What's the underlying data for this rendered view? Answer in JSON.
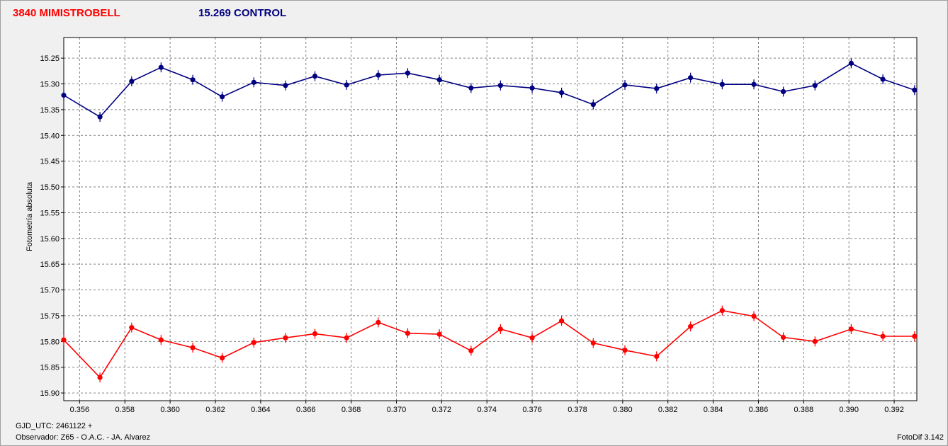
{
  "header": {
    "variable_label": "3840 MIMISTROBELL",
    "control_label": "15.269 CONTROL"
  },
  "footer": {
    "jd_label": "GJD_UTC: 2461122 +",
    "observer_label": "Observador: Z65 - O.A.C. - JA. Alvarez",
    "software_label": "FotoDif 3.142"
  },
  "chart_data": {
    "type": "line",
    "title": "",
    "xlabel": "",
    "ylabel": "Fotometría absoluta",
    "xlim": [
      0.3553,
      0.393
    ],
    "ylim": [
      15.21,
      15.915
    ],
    "y_inverted": true,
    "grid": true,
    "x_ticks": [
      "0.356",
      "0.358",
      "0.360",
      "0.362",
      "0.364",
      "0.366",
      "0.368",
      "0.370",
      "0.372",
      "0.374",
      "0.376",
      "0.378",
      "0.380",
      "0.382",
      "0.384",
      "0.386",
      "0.388",
      "0.390",
      "0.392"
    ],
    "y_ticks": [
      "15.25",
      "15.30",
      "15.35",
      "15.40",
      "15.45",
      "15.50",
      "15.55",
      "15.60",
      "15.65",
      "15.70",
      "15.75",
      "15.80",
      "15.85",
      "15.90"
    ],
    "x": [
      0.3553,
      0.3569,
      0.3583,
      0.3596,
      0.361,
      0.3623,
      0.3637,
      0.3651,
      0.3664,
      0.3678,
      0.3692,
      0.3705,
      0.3719,
      0.3733,
      0.3746,
      0.376,
      0.3773,
      0.3787,
      0.3801,
      0.3815,
      0.383,
      0.3844,
      0.3858,
      0.3871,
      0.3885,
      0.3901,
      0.3915,
      0.3929
    ],
    "series": [
      {
        "name": "3840 MIMISTROBELL",
        "color": "#ff0000",
        "values": [
          15.797,
          15.87,
          15.773,
          15.797,
          15.812,
          15.832,
          15.802,
          15.793,
          15.785,
          15.793,
          15.763,
          15.784,
          15.786,
          15.818,
          15.776,
          15.793,
          15.76,
          15.803,
          15.817,
          15.829,
          15.771,
          15.74,
          15.751,
          15.792,
          15.8,
          15.776,
          15.79,
          15.79
        ]
      },
      {
        "name": "15.269 CONTROL",
        "color": "#000080",
        "values": [
          15.322,
          15.364,
          15.295,
          15.268,
          15.292,
          15.325,
          15.297,
          15.303,
          15.285,
          15.302,
          15.283,
          15.279,
          15.292,
          15.308,
          15.303,
          15.308,
          15.317,
          15.34,
          15.302,
          15.309,
          15.288,
          15.301,
          15.301,
          15.315,
          15.303,
          15.26,
          15.291,
          15.312
        ]
      }
    ]
  }
}
